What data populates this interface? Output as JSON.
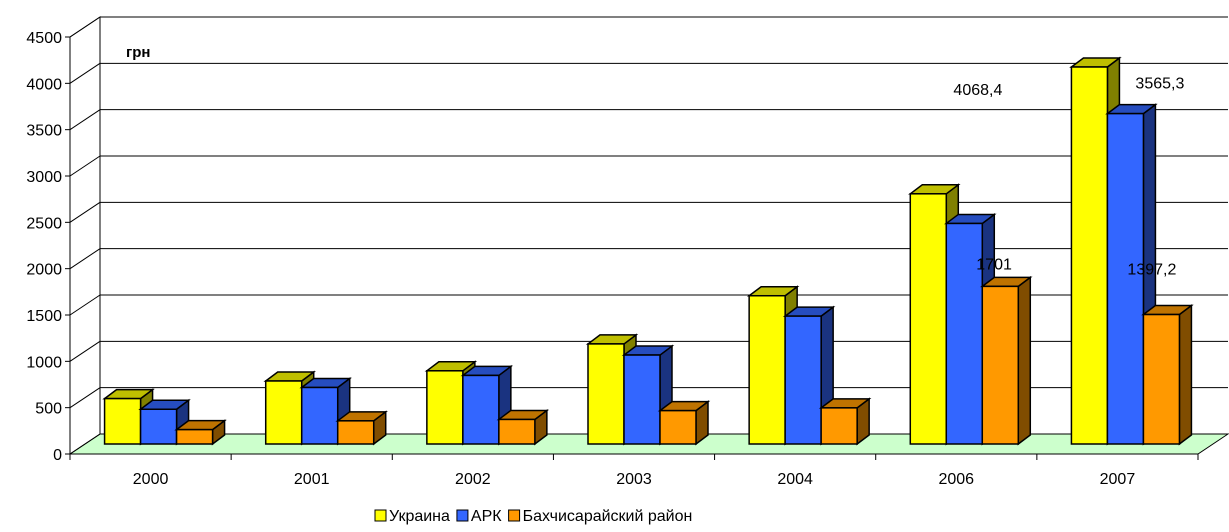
{
  "chart_data": {
    "type": "bar",
    "title": "",
    "unit_label": "грн",
    "categories": [
      "2000",
      "2001",
      "2002",
      "2003",
      "2004",
      "2006",
      "2007"
    ],
    "series": [
      {
        "name": "Украина",
        "color": "#ffff00",
        "values": [
          490,
          680,
          790,
          1080,
          1600,
          2700,
          4068.4
        ]
      },
      {
        "name": "АРК",
        "color": "#3366ff",
        "values": [
          375,
          610,
          740,
          960,
          1380,
          2380,
          3565.3
        ]
      },
      {
        "name": "Бахчисарайский район",
        "color": "#ff9900",
        "values": [
          155,
          250,
          265,
          360,
          390,
          1701,
          1397.2
        ]
      }
    ],
    "ylim": [
      0,
      4500
    ],
    "yticks": [
      0,
      500,
      1000,
      1500,
      2000,
      2500,
      3000,
      3500,
      4000,
      4500
    ],
    "data_labels": [
      {
        "text": "4068,4",
        "series": 0,
        "category": 6
      },
      {
        "text": "3565,3",
        "series": 1,
        "category": 6
      },
      {
        "text": "1701",
        "series": 2,
        "category": 5
      },
      {
        "text": "1397,2",
        "series": 2,
        "category": 6
      }
    ],
    "grid": true,
    "floor_color": "#ccffcc",
    "legend_position": "bottom"
  }
}
